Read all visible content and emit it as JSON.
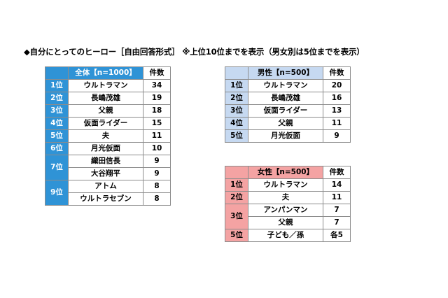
{
  "heading": "◆自分にとってのヒーロー［自由回答形式］ ※上位10位までを表示（男女別は5位までを表示）",
  "colors": {
    "all_accent": "#2f93d6",
    "male_accent": "#c6d9f1",
    "female_accent": "#f4a3a3"
  },
  "all": {
    "header_label": "全体【n=1000】",
    "header_count": "件数",
    "rows": [
      {
        "rank": "1位",
        "name": "ウルトラマン",
        "count": "34"
      },
      {
        "rank": "2位",
        "name": "長嶋茂雄",
        "count": "19"
      },
      {
        "rank": "3位",
        "name": "父親",
        "count": "18"
      },
      {
        "rank": "4位",
        "name": "仮面ライダー",
        "count": "15"
      },
      {
        "rank": "5位",
        "name": "夫",
        "count": "11"
      },
      {
        "rank": "6位",
        "name": "月光仮面",
        "count": "10"
      },
      {
        "rank": "7位",
        "name": "織田信長",
        "count": "9"
      },
      {
        "rank": "",
        "name": "大谷翔平",
        "count": "9"
      },
      {
        "rank": "9位",
        "name": "アトム",
        "count": "8"
      },
      {
        "rank": "",
        "name": "ウルトラセブン",
        "count": "8"
      }
    ]
  },
  "male": {
    "header_label": "男性【n=500】",
    "header_count": "件数",
    "rows": [
      {
        "rank": "1位",
        "name": "ウルトラマン",
        "count": "20"
      },
      {
        "rank": "2位",
        "name": "長嶋茂雄",
        "count": "16"
      },
      {
        "rank": "3位",
        "name": "仮面ライダー",
        "count": "13"
      },
      {
        "rank": "4位",
        "name": "父親",
        "count": "11"
      },
      {
        "rank": "5位",
        "name": "月光仮面",
        "count": "9"
      }
    ]
  },
  "female": {
    "header_label": "女性【n=500】",
    "header_count": "件数",
    "rows": [
      {
        "rank": "1位",
        "name": "ウルトラマン",
        "count": "14"
      },
      {
        "rank": "2位",
        "name": "夫",
        "count": "11"
      },
      {
        "rank": "3位",
        "name": "アンパンマン",
        "count": "7"
      },
      {
        "rank": "",
        "name": "父親",
        "count": "7"
      },
      {
        "rank": "5位",
        "name": "子ども／孫",
        "count": "各5"
      }
    ]
  }
}
